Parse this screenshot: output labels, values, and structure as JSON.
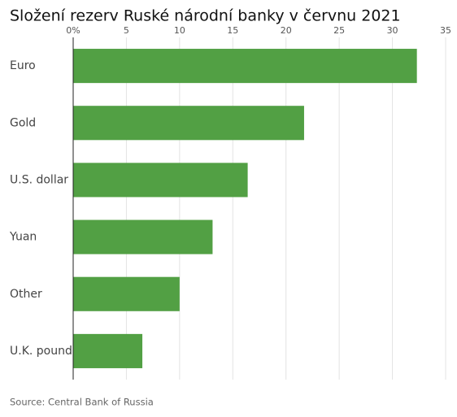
{
  "chart_data": {
    "type": "bar",
    "orientation": "horizontal",
    "title": "Složení rezerv Ruské národní banky v červnu 2021",
    "categories": [
      "Euro",
      "Gold",
      "U.S. dollar",
      "Yuan",
      "Other",
      "U.K. pound"
    ],
    "values": [
      32.3,
      21.7,
      16.4,
      13.1,
      10,
      6.5
    ],
    "color": "#52a044",
    "xlim": [
      0,
      35
    ],
    "xticks": [
      {
        "value": 0,
        "label": "0%"
      },
      5,
      10,
      15,
      20,
      25,
      30,
      35
    ],
    "grid": true,
    "source": "Source: Central Bank of Russia"
  }
}
